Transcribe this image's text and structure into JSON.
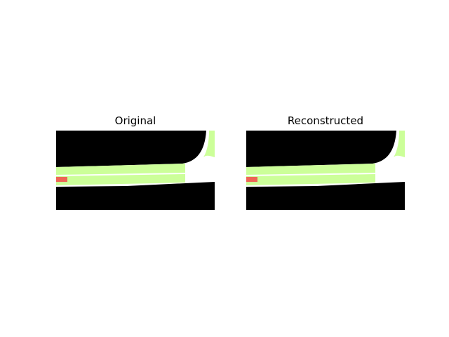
{
  "panels": [
    {
      "title": "Original"
    },
    {
      "title": "Reconstructed"
    }
  ],
  "colors": {
    "background": "#000000",
    "road": "#ffffff",
    "lane": "#ccff99",
    "vehicle": "#ee6655"
  }
}
